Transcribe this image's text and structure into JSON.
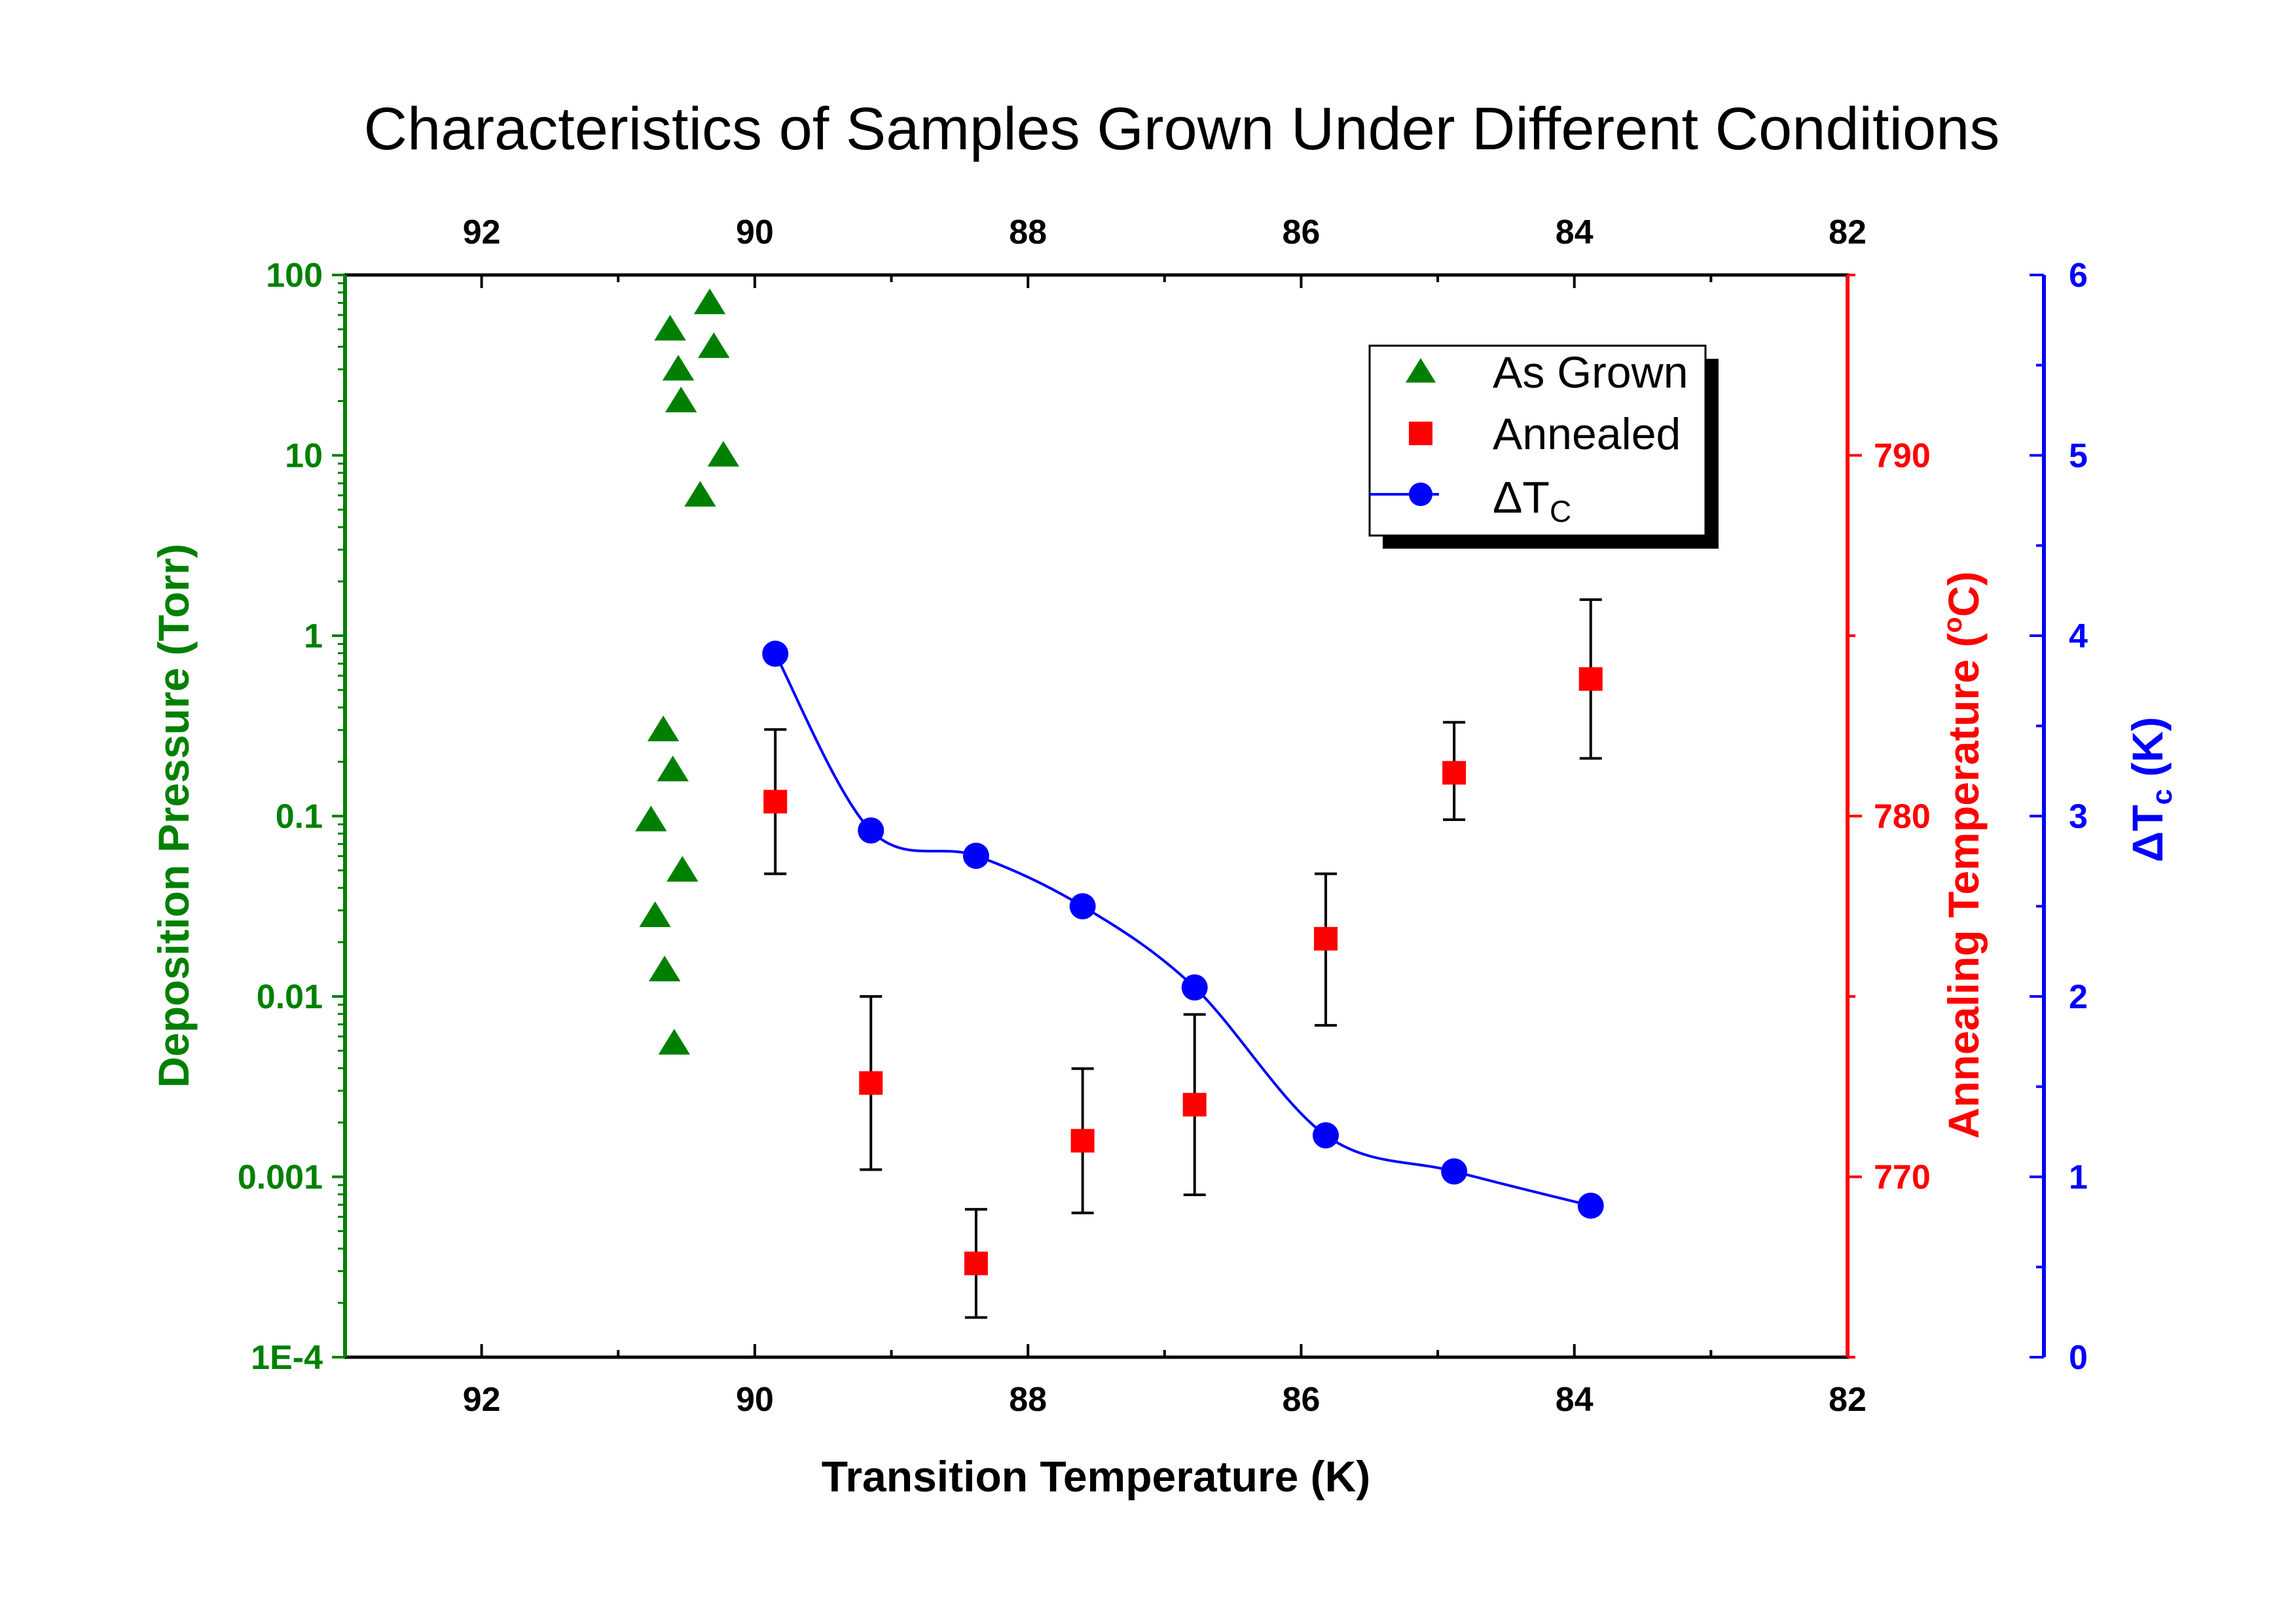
{
  "colors": {
    "left_axis": "#008000",
    "annealing_axis": "#ff0000",
    "delta_axis": "#0000ff",
    "as_grown": "#008000",
    "annealed": "#ff0000",
    "delta_tc": "#0000ff",
    "error_bar": "#000000"
  },
  "chart_data": {
    "type": "scatter",
    "title": "Characteristics of Samples Grown Under Different Conditions",
    "xlabel": "Transition Temperature (K)",
    "x_ticks": [
      "92",
      "90",
      "88",
      "86",
      "84",
      "82"
    ],
    "xlim": [
      93.0,
      82.0
    ],
    "left_axis": {
      "label": "Deposition Pressure (Torr)",
      "scale": "log",
      "ylim": [
        0.0001,
        100
      ],
      "ticks": [
        "1E-4",
        "0.001",
        "0.01",
        "0.1",
        "1",
        "10",
        "100"
      ]
    },
    "annealing_axis": {
      "label": "Annealing Temperature (°C)",
      "label_prefix": "Annealing Temperature (",
      "label_degree": "o",
      "label_suffix": "C)",
      "ylim": [
        765,
        795
      ],
      "ticks": [
        "770",
        "780",
        "790"
      ]
    },
    "delta_axis": {
      "label_delta": "ΔT",
      "label_sub": "c",
      "label_suffix": " (K)",
      "ylim": [
        0,
        6
      ],
      "ticks": [
        "0",
        "1",
        "2",
        "3",
        "4",
        "5",
        "6"
      ]
    },
    "legend": {
      "placement": "top-right",
      "as_grown": "As Grown",
      "annealed": "Annealed",
      "delta_main": "ΔT",
      "delta_sub": "C"
    },
    "series": [
      {
        "name": "As Grown",
        "axis": "left",
        "marker": "triangle",
        "points": [
          {
            "x": 90.33,
            "y": 70
          },
          {
            "x": 90.62,
            "y": 50
          },
          {
            "x": 90.3,
            "y": 40
          },
          {
            "x": 90.56,
            "y": 30
          },
          {
            "x": 90.54,
            "y": 20
          },
          {
            "x": 90.23,
            "y": 10
          },
          {
            "x": 90.4,
            "y": 6
          },
          {
            "x": 90.67,
            "y": 0.3
          },
          {
            "x": 90.6,
            "y": 0.18
          },
          {
            "x": 90.76,
            "y": 0.095
          },
          {
            "x": 90.53,
            "y": 0.05
          },
          {
            "x": 90.73,
            "y": 0.028
          },
          {
            "x": 90.66,
            "y": 0.014
          },
          {
            "x": 90.59,
            "y": 0.0055
          }
        ]
      },
      {
        "name": "Annealed",
        "axis": "annealing",
        "marker": "square",
        "points": [
          {
            "x": 89.85,
            "y": 780.4,
            "err_low": 2.0,
            "err_high": 2.0
          },
          {
            "x": 89.15,
            "y": 772.6,
            "err_low": 2.4,
            "err_high": 2.4
          },
          {
            "x": 88.38,
            "y": 767.6,
            "err_low": 1.5,
            "err_high": 1.5
          },
          {
            "x": 87.6,
            "y": 771.0,
            "err_low": 2.0,
            "err_high": 2.0
          },
          {
            "x": 86.78,
            "y": 772.0,
            "err_low": 2.5,
            "err_high": 2.5
          },
          {
            "x": 85.82,
            "y": 776.6,
            "err_low": 2.4,
            "err_high": 1.8
          },
          {
            "x": 84.88,
            "y": 781.2,
            "err_low": 1.3,
            "err_high": 1.4
          },
          {
            "x": 83.88,
            "y": 783.8,
            "err_low": 2.2,
            "err_high": 2.2
          }
        ]
      },
      {
        "name": "ΔT",
        "axis": "delta",
        "marker": "circle",
        "line": true,
        "points": [
          {
            "x": 89.85,
            "y": 3.9
          },
          {
            "x": 89.15,
            "y": 2.92
          },
          {
            "x": 88.38,
            "y": 2.78
          },
          {
            "x": 87.6,
            "y": 2.5
          },
          {
            "x": 86.78,
            "y": 2.05
          },
          {
            "x": 85.82,
            "y": 1.23
          },
          {
            "x": 84.88,
            "y": 1.03
          },
          {
            "x": 83.88,
            "y": 0.84
          }
        ]
      }
    ]
  }
}
